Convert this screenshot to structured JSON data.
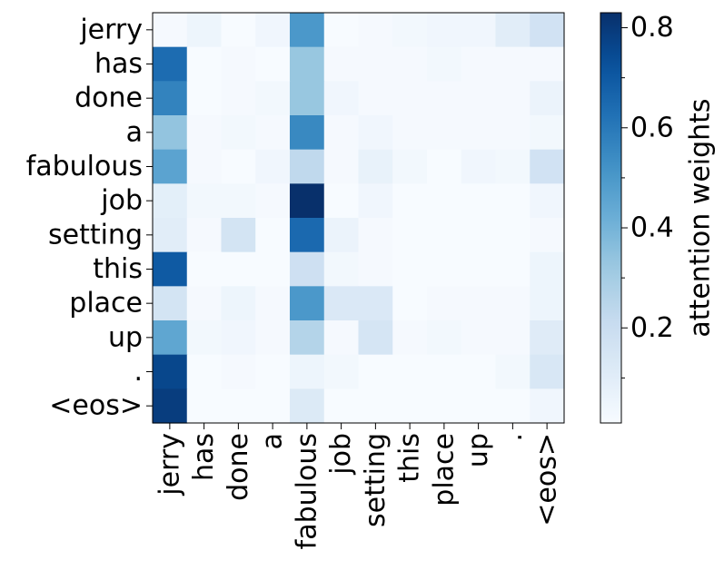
{
  "chart_data": {
    "type": "heatmap",
    "x_labels": [
      "jerry",
      "has",
      "done",
      "a",
      "fabulous",
      "job",
      "setting",
      "this",
      "place",
      "up",
      ".",
      "<eos>"
    ],
    "y_labels": [
      "jerry",
      "has",
      "done",
      "a",
      "fabulous",
      "job",
      "setting",
      "this",
      "place",
      "up",
      ".",
      "<eos>"
    ],
    "values": [
      [
        0.02,
        0.05,
        0.01,
        0.04,
        0.5,
        0.0,
        0.02,
        0.03,
        0.04,
        0.04,
        0.1,
        0.17
      ],
      [
        0.64,
        0.01,
        0.02,
        0.01,
        0.33,
        0.02,
        0.02,
        0.02,
        0.03,
        0.02,
        0.02,
        0.02
      ],
      [
        0.57,
        0.01,
        0.02,
        0.03,
        0.33,
        0.04,
        0.02,
        0.02,
        0.02,
        0.02,
        0.02,
        0.06
      ],
      [
        0.34,
        0.02,
        0.03,
        0.02,
        0.55,
        0.02,
        0.04,
        0.02,
        0.02,
        0.02,
        0.02,
        0.03
      ],
      [
        0.46,
        0.02,
        0.0,
        0.04,
        0.23,
        0.02,
        0.07,
        0.03,
        0.01,
        0.04,
        0.03,
        0.17
      ],
      [
        0.09,
        0.03,
        0.03,
        0.02,
        0.83,
        0.01,
        0.04,
        0.01,
        0.01,
        0.01,
        0.01,
        0.04
      ],
      [
        0.1,
        0.02,
        0.16,
        0.01,
        0.65,
        0.06,
        0.02,
        0.01,
        0.01,
        0.01,
        0.01,
        0.02
      ],
      [
        0.7,
        0.01,
        0.01,
        0.01,
        0.18,
        0.03,
        0.02,
        0.01,
        0.01,
        0.01,
        0.01,
        0.05
      ],
      [
        0.16,
        0.02,
        0.05,
        0.02,
        0.5,
        0.13,
        0.13,
        0.01,
        0.02,
        0.02,
        0.02,
        0.05
      ],
      [
        0.45,
        0.03,
        0.04,
        0.02,
        0.26,
        0.02,
        0.15,
        0.02,
        0.03,
        0.02,
        0.02,
        0.11
      ],
      [
        0.76,
        0.01,
        0.02,
        0.01,
        0.05,
        0.03,
        0.01,
        0.01,
        0.01,
        0.01,
        0.03,
        0.14
      ],
      [
        0.79,
        0.01,
        0.01,
        0.01,
        0.12,
        0.01,
        0.01,
        0.01,
        0.01,
        0.01,
        0.01,
        0.04
      ]
    ],
    "colorbar": {
      "label": "attention weights",
      "range": [
        0.01,
        0.83
      ],
      "major_ticks": [
        0.2,
        0.4,
        0.6,
        0.8
      ],
      "major_tick_labels": [
        "0.2",
        "0.4",
        "0.6",
        "0.8"
      ],
      "minor_ticks": [
        0.1,
        0.3,
        0.5,
        0.7
      ]
    },
    "colormap": "Blues",
    "colors": {
      "low": "#f7fbff",
      "high": "#08306b"
    },
    "grid": false
  }
}
